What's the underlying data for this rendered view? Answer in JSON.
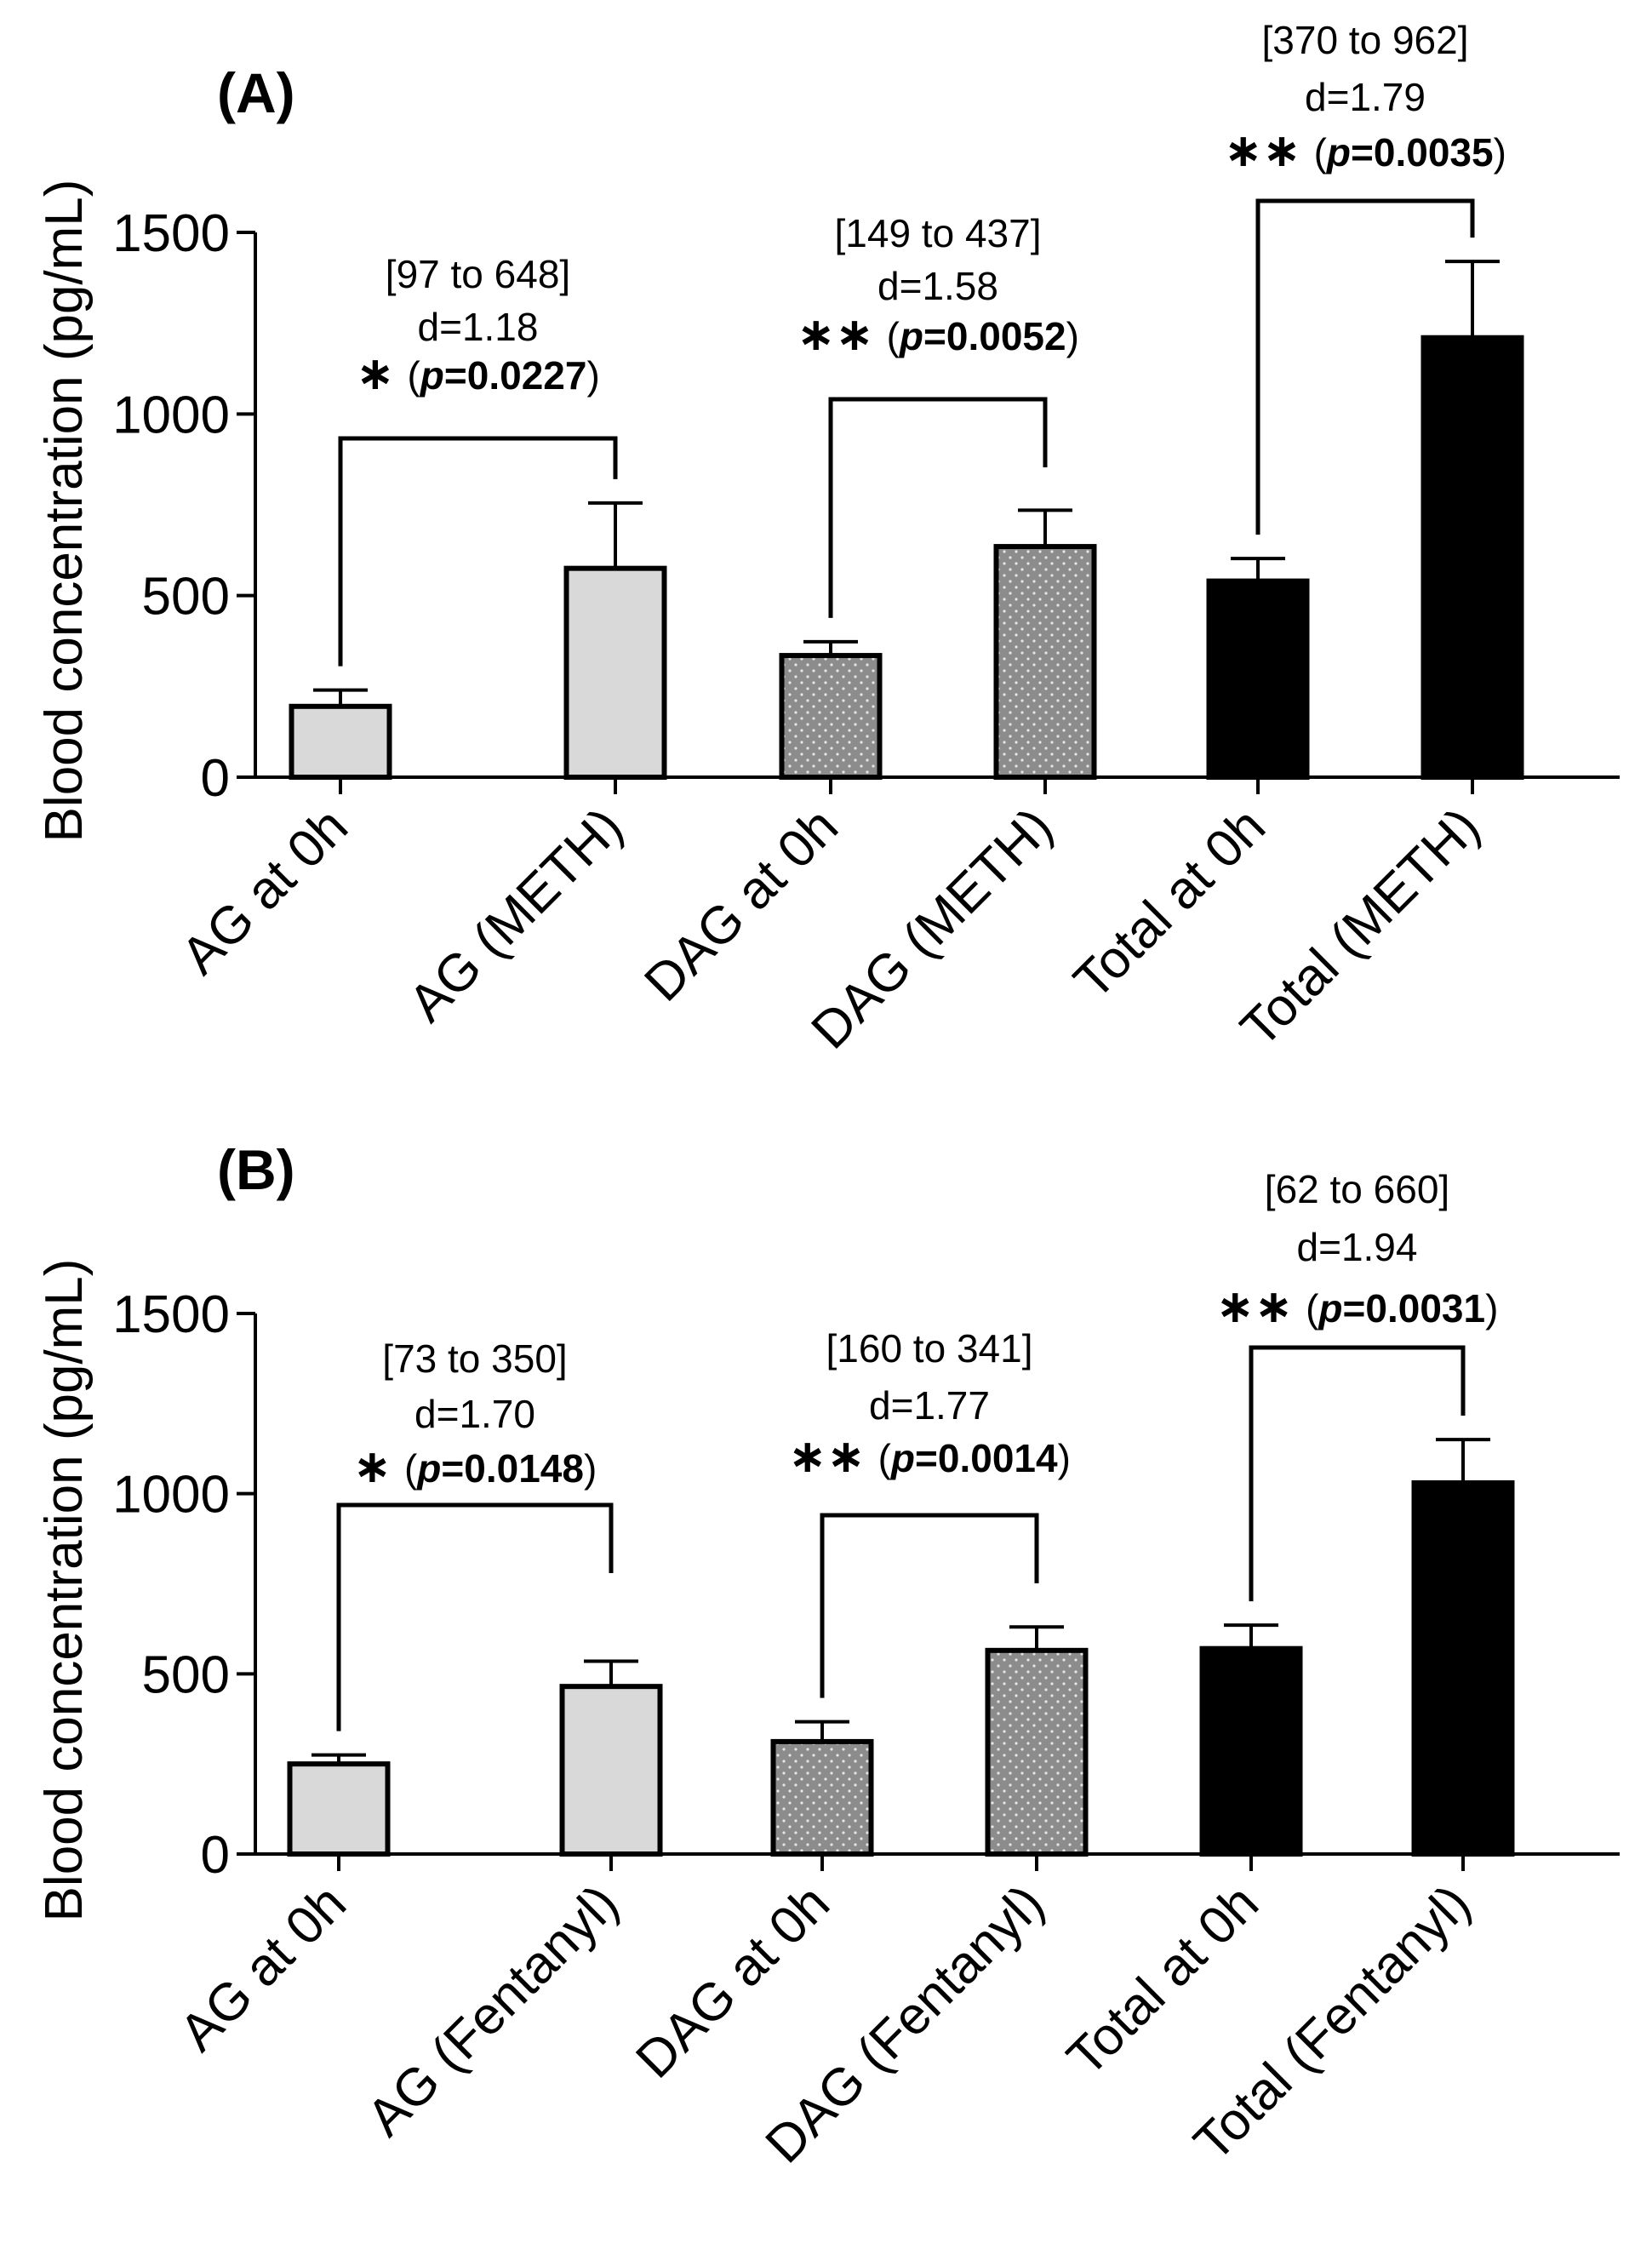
{
  "chart_data": [
    {
      "type": "bar",
      "panel_label": "(A)",
      "ylabel": "Blood concentration (pg/mL)",
      "ylim": [
        0,
        1500
      ],
      "yticks": [
        0,
        500,
        1000,
        1500
      ],
      "categories": [
        "AG at 0h",
        "AG (METH)",
        "DAG at 0h",
        "DAG (METH)",
        "Total at 0h",
        "Total (METH)"
      ],
      "values": [
        195,
        575,
        335,
        635,
        540,
        1210
      ],
      "errors": [
        45,
        180,
        38,
        100,
        62,
        210
      ],
      "bar_fill": [
        "#d9d9d9",
        "#d9d9d9",
        "#8c8c8c",
        "#8c8c8c",
        "#000000",
        "#000000"
      ],
      "bar_pattern": [
        "none",
        "none",
        "dots",
        "dots",
        "none",
        "none"
      ],
      "annotations": [
        {
          "pair": [
            0,
            1
          ],
          "ci": "[97 to 648]",
          "d": "d=1.18",
          "stars": "∗",
          "p_label": "p",
          "p_value": "=0.0227"
        },
        {
          "pair": [
            2,
            3
          ],
          "ci": "[149 to 437]",
          "d": "d=1.58",
          "stars": "∗∗",
          "p_label": "p",
          "p_value": "=0.0052"
        },
        {
          "pair": [
            4,
            5
          ],
          "ci": "[370 to 962]",
          "d": "d=1.79",
          "stars": "∗∗",
          "p_label": "p",
          "p_value": "=0.0035"
        }
      ]
    },
    {
      "type": "bar",
      "panel_label": "(B)",
      "ylabel": "Blood concentration (pg/mL)",
      "ylim": [
        0,
        1500
      ],
      "yticks": [
        0,
        500,
        1000,
        1500
      ],
      "categories": [
        "AG at 0h",
        "AG (Fentanyl)",
        "DAG at 0h",
        "DAG (Fentanyl)",
        "Total at 0h",
        "Total (Fentanyl)"
      ],
      "values": [
        250,
        465,
        312,
        565,
        570,
        1030
      ],
      "errors": [
        25,
        70,
        55,
        65,
        65,
        120
      ],
      "bar_fill": [
        "#d9d9d9",
        "#d9d9d9",
        "#8c8c8c",
        "#8c8c8c",
        "#000000",
        "#000000"
      ],
      "bar_pattern": [
        "none",
        "none",
        "dots",
        "dots",
        "none",
        "none"
      ],
      "annotations": [
        {
          "pair": [
            0,
            1
          ],
          "ci": "[73 to 350]",
          "d": "d=1.70",
          "stars": "∗",
          "p_label": "p",
          "p_value": "=0.0148"
        },
        {
          "pair": [
            2,
            3
          ],
          "ci": "[160 to 341]",
          "d": "d=1.77",
          "stars": "∗∗",
          "p_label": "p",
          "p_value": "=0.0014"
        },
        {
          "pair": [
            4,
            5
          ],
          "ci": "[62 to 660]",
          "d": "d=1.94",
          "stars": "∗∗",
          "p_label": "p",
          "p_value": "=0.0031"
        }
      ]
    }
  ]
}
